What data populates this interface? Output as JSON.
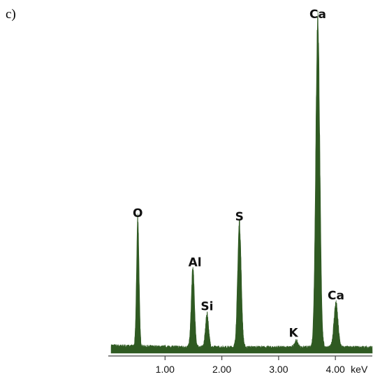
{
  "panel_label": "c)",
  "chart_data": {
    "type": "line",
    "chart_kind": "EDS spectrum",
    "x_unit": "keV",
    "xlim": [
      0.0,
      4.65
    ],
    "ylim": [
      0,
      100
    ],
    "grid": false,
    "legend": "none",
    "fill_color": "#2f5a22",
    "x_ticks": [
      {
        "value": 1.0,
        "label": "1.00"
      },
      {
        "value": 2.0,
        "label": "2.00"
      },
      {
        "value": 3.0,
        "label": "3.00"
      },
      {
        "value": 4.0,
        "label": "4.00"
      }
    ],
    "peaks": [
      {
        "label": "O",
        "energy": 0.52,
        "height": 39.5,
        "width": 0.022
      },
      {
        "label": "Al",
        "energy": 1.49,
        "height": 24.0,
        "width": 0.028
      },
      {
        "label": "Si",
        "energy": 1.74,
        "height": 10.2,
        "width": 0.028
      },
      {
        "label": "S",
        "energy": 2.31,
        "height": 38.0,
        "width": 0.032
      },
      {
        "label": "K",
        "energy": 3.31,
        "height": 2.0,
        "width": 0.03
      },
      {
        "label": "Ca",
        "energy": 3.69,
        "height": 100.0,
        "width": 0.036
      },
      {
        "label": "Ca",
        "energy": 4.01,
        "height": 13.5,
        "width": 0.036
      }
    ],
    "background_level": 1.6
  }
}
